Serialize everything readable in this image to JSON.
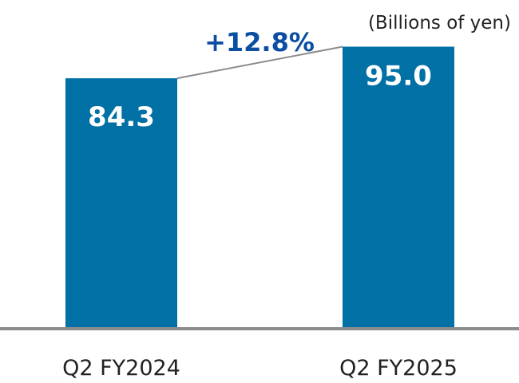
{
  "chart_data": {
    "type": "bar",
    "title": "",
    "unit_label": "(Billions of yen)",
    "categories": [
      "Q2 FY2024",
      "Q2 FY2025"
    ],
    "values": [
      84.3,
      95.0
    ],
    "value_labels": [
      "84.3",
      "95.0"
    ],
    "growth_label": "+12.8%",
    "xlabel": "",
    "ylabel": "",
    "ylim": [
      0,
      100
    ],
    "grid": false,
    "legend": "none",
    "colors": {
      "bar": "#0070A5",
      "growth_text": "#0B4EA2",
      "connector": "#8C8C8C",
      "axis": "#8C8C8C"
    }
  }
}
